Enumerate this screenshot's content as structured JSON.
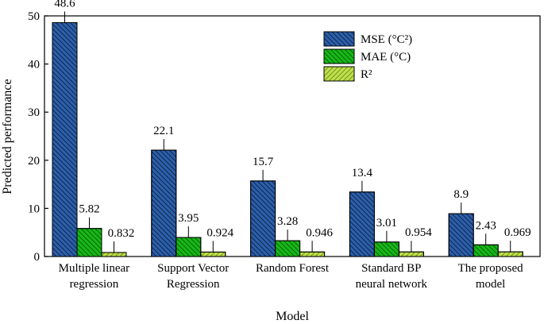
{
  "chart_data": {
    "type": "bar",
    "title": "",
    "xlabel": "Model",
    "ylabel": "Predicted performance",
    "ylim": [
      0,
      50
    ],
    "yticks": [
      "0",
      "10",
      "20",
      "30",
      "40",
      "50"
    ],
    "categories": [
      [
        "Multiple linear",
        "regression"
      ],
      [
        "Support Vector",
        "Regression"
      ],
      [
        "Random Forest"
      ],
      [
        "Standard BP",
        "neural network"
      ],
      [
        "The proposed",
        "model"
      ]
    ],
    "series": [
      {
        "name": "MSE (°C²)",
        "values": [
          48.6,
          22.1,
          15.7,
          13.4,
          8.9
        ],
        "labels": [
          "48.6",
          "22.1",
          "15.7",
          "13.4",
          "8.9"
        ],
        "color": "#2c5fa8",
        "hatch": "back"
      },
      {
        "name": "MAE (°C)",
        "values": [
          5.82,
          3.95,
          3.28,
          3.01,
          2.43
        ],
        "labels": [
          "5.82",
          "3.95",
          "3.28",
          "3.01",
          "2.43"
        ],
        "color": "#16b816",
        "hatch": "back"
      },
      {
        "name": "R²",
        "values": [
          0.832,
          0.924,
          0.946,
          0.954,
          0.969
        ],
        "labels": [
          "0.832",
          "0.924",
          "0.946",
          "0.954",
          "0.969"
        ],
        "color": "#bde04a",
        "hatch": "fwd"
      }
    ],
    "legend_position": "top-right"
  }
}
